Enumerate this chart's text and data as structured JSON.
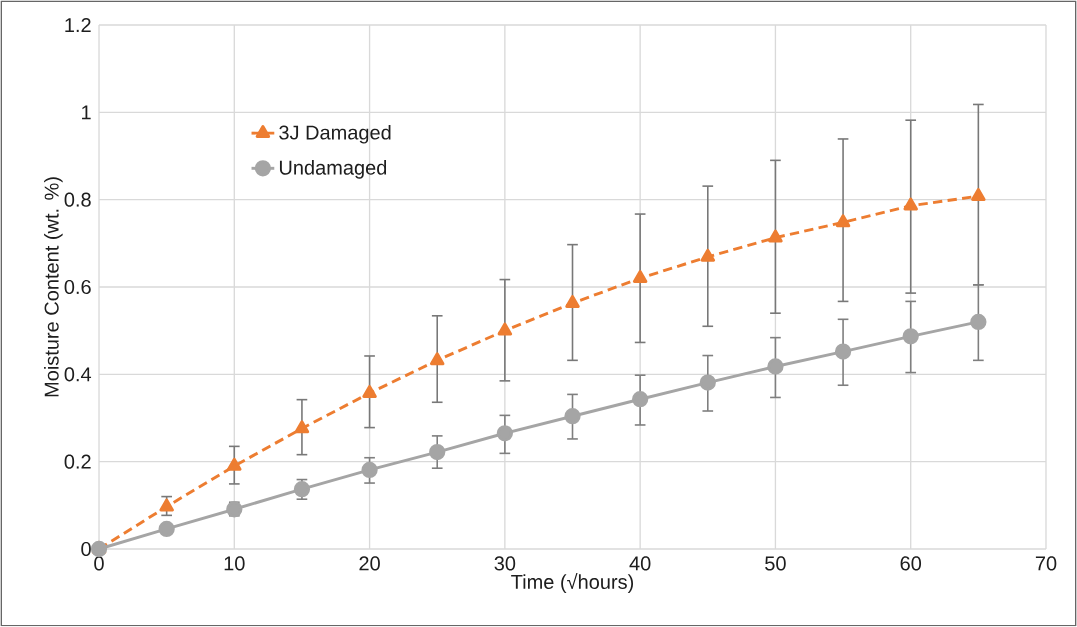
{
  "chart_data": {
    "type": "line",
    "xlabel": "Time (√hours)",
    "ylabel": "Moisture Content (wt. %)",
    "x": [
      0,
      5,
      10,
      15,
      20,
      25,
      30,
      35,
      40,
      45,
      50,
      55,
      60,
      65
    ],
    "series": [
      {
        "name": "3J Damaged",
        "color": "#ed7d31",
        "marker": "triangle",
        "line_style": "dashed",
        "values": [
          0,
          0.097,
          0.19,
          0.276,
          0.357,
          0.432,
          0.5,
          0.563,
          0.62,
          0.669,
          0.713,
          0.748,
          0.786,
          0.808
        ],
        "errors": [
          null,
          [
            0.077,
            0.12
          ],
          [
            0.149,
            0.235
          ],
          [
            0.216,
            0.342
          ],
          [
            0.278,
            0.442
          ],
          [
            0.336,
            0.534
          ],
          [
            0.385,
            0.617
          ],
          [
            0.432,
            0.697
          ],
          [
            0.473,
            0.767
          ],
          [
            0.51,
            0.831
          ],
          [
            0.54,
            0.89
          ],
          [
            0.567,
            0.939
          ],
          [
            0.586,
            0.982
          ],
          [
            0.605,
            1.018
          ]
        ]
      },
      {
        "name": "Undamaged",
        "color": "#a5a5a5",
        "marker": "circle",
        "line_style": "solid",
        "values": [
          0,
          0.046,
          0.091,
          0.137,
          0.181,
          0.222,
          0.265,
          0.304,
          0.343,
          0.381,
          0.418,
          0.452,
          0.487,
          0.52
        ],
        "errors": [
          null,
          null,
          [
            0.076,
            0.107
          ],
          [
            0.114,
            0.159
          ],
          [
            0.151,
            0.209
          ],
          [
            0.185,
            0.259
          ],
          [
            0.219,
            0.306
          ],
          [
            0.252,
            0.354
          ],
          [
            0.284,
            0.398
          ],
          [
            0.316,
            0.443
          ],
          [
            0.347,
            0.484
          ],
          [
            0.375,
            0.526
          ],
          [
            0.404,
            0.567
          ],
          [
            0.432,
            0.605
          ]
        ]
      }
    ],
    "xlim": [
      0,
      70
    ],
    "ylim": [
      0,
      1.2
    ],
    "xticks": [
      0,
      10,
      20,
      30,
      40,
      50,
      60,
      70
    ],
    "yticks": [
      0,
      0.2,
      0.4,
      0.6,
      0.8,
      1,
      1.2
    ],
    "grid": true,
    "legend": "top left"
  }
}
